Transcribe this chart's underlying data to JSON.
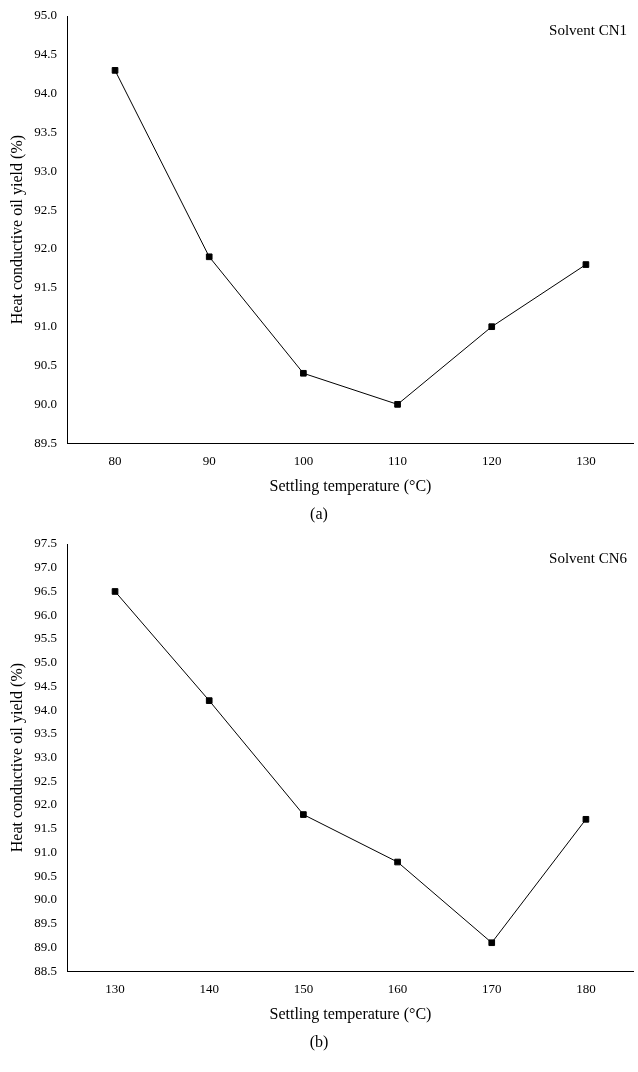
{
  "chart_data": [
    {
      "type": "line",
      "xlabel": "Settling temperature (°C)",
      "ylabel": "Heat conductive oil yield (%)",
      "annotations": [
        "Solvent CN1",
        "(a)"
      ],
      "x": [
        80,
        90,
        100,
        110,
        120,
        130
      ],
      "series": [
        {
          "color": "#000000",
          "values": [
            94.3,
            91.9,
            90.4,
            90.0,
            91.0,
            91.8
          ]
        }
      ],
      "xlim": [
        75,
        135
      ],
      "xticks": [
        80,
        90,
        100,
        110,
        120,
        130
      ],
      "ylim": [
        89.5,
        95.0
      ],
      "yticks": [
        {
          "value": 89.5,
          "label": "89.5"
        },
        {
          "value": 90,
          "label": "90.0"
        },
        {
          "value": 90.5,
          "label": "90.5"
        },
        {
          "value": 91,
          "label": "91.0"
        },
        {
          "value": 91.5,
          "label": "91.5"
        },
        {
          "value": 92,
          "label": "92.0"
        },
        {
          "value": 92.5,
          "label": "92.5"
        },
        {
          "value": 93,
          "label": "93.0"
        },
        {
          "value": 93.5,
          "label": "93.5"
        },
        {
          "value": 94,
          "label": "94.0"
        },
        {
          "value": 94.5,
          "label": "94.5"
        },
        {
          "value": 95,
          "label": "95.0"
        }
      ],
      "grid": false,
      "legend": false,
      "marker": "square",
      "line_style": "solid"
    },
    {
      "type": "line",
      "xlabel": "Settling temperature (°C)",
      "ylabel": "Heat conductive oil yield (%)",
      "annotations": [
        "Solvent CN6",
        "(b)"
      ],
      "x": [
        130,
        140,
        150,
        160,
        170,
        180
      ],
      "series": [
        {
          "color": "#000000",
          "values": [
            96.5,
            94.2,
            91.8,
            90.8,
            89.1,
            91.7
          ]
        }
      ],
      "xlim": [
        125,
        185
      ],
      "xticks": [
        130,
        140,
        150,
        160,
        170,
        180
      ],
      "ylim": [
        88.5,
        97.5
      ],
      "yticks": [
        {
          "value": 88.5,
          "label": "88.5"
        },
        {
          "value": 89,
          "label": "89.0"
        },
        {
          "value": 89.5,
          "label": "89.5"
        },
        {
          "value": 90,
          "label": "90.0"
        },
        {
          "value": 90.5,
          "label": "90.5"
        },
        {
          "value": 91,
          "label": "91.0"
        },
        {
          "value": 91.5,
          "label": "91.5"
        },
        {
          "value": 92,
          "label": "92.0"
        },
        {
          "value": 92.5,
          "label": "92.5"
        },
        {
          "value": 93,
          "label": "93.0"
        },
        {
          "value": 93.5,
          "label": "93.5"
        },
        {
          "value": 94,
          "label": "94.0"
        },
        {
          "value": 94.5,
          "label": "94.5"
        },
        {
          "value": 95,
          "label": "95.0"
        },
        {
          "value": 95.5,
          "label": "95.5"
        },
        {
          "value": 96,
          "label": "96.0"
        },
        {
          "value": 96.5,
          "label": "96.5"
        },
        {
          "value": 97,
          "label": "97.0"
        },
        {
          "value": 97.5,
          "label": "97.5"
        }
      ],
      "grid": false,
      "legend": false,
      "marker": "square",
      "line_style": "solid"
    }
  ]
}
